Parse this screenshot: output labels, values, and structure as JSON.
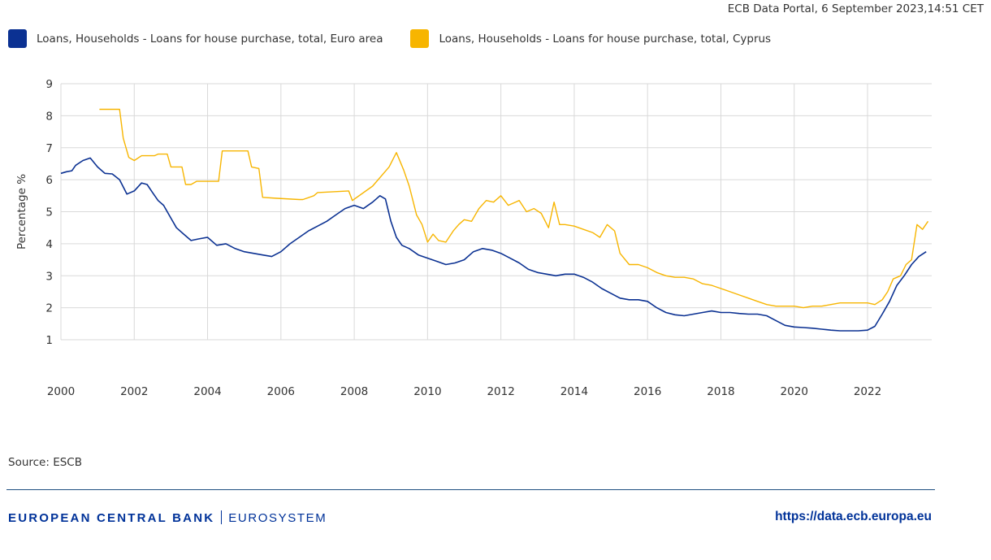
{
  "header": {
    "timestamp": "ECB Data Portal, 6 September 2023,14:51 CET"
  },
  "footer": {
    "source": "Source: ESCB",
    "bank_name": "EUROPEAN CENTRAL BANK",
    "system_name": "EUROSYSTEM",
    "url": "https://data.ecb.europa.eu"
  },
  "colors": {
    "euro_area": "#0b3192",
    "cyprus": "#f7b500",
    "grid": "#d9d9d9"
  },
  "chart_data": {
    "type": "line",
    "title": "",
    "xlabel": "",
    "ylabel": "Percentage %",
    "xlim": [
      2000,
      2023.75
    ],
    "ylim": [
      1,
      9
    ],
    "x_ticks": [
      "2000",
      "2002",
      "2004",
      "2006",
      "2008",
      "2010",
      "2012",
      "2014",
      "2016",
      "2018",
      "2020",
      "2022"
    ],
    "y_ticks": [
      "1",
      "2",
      "3",
      "4",
      "5",
      "6",
      "7",
      "8",
      "9"
    ],
    "grid": true,
    "legend_position": "top-left",
    "series": [
      {
        "name": "Loans, Households - Loans for house purchase, total, Euro area",
        "color": "#0b3192",
        "x": [
          2000.0,
          2000.15,
          2000.3,
          2000.4,
          2000.6,
          2000.8,
          2001.0,
          2001.2,
          2001.4,
          2001.6,
          2001.8,
          2002.0,
          2002.2,
          2002.35,
          2002.5,
          2002.65,
          2002.8,
          2003.0,
          2003.15,
          2003.35,
          2003.55,
          2003.75,
          2004.0,
          2004.25,
          2004.5,
          2004.75,
          2005.0,
          2005.25,
          2005.5,
          2005.75,
          2006.0,
          2006.25,
          2006.5,
          2006.75,
          2007.0,
          2007.25,
          2007.5,
          2007.75,
          2008.0,
          2008.25,
          2008.5,
          2008.7,
          2008.85,
          2009.0,
          2009.15,
          2009.3,
          2009.5,
          2009.75,
          2010.0,
          2010.25,
          2010.5,
          2010.75,
          2011.0,
          2011.25,
          2011.5,
          2011.75,
          2012.0,
          2012.25,
          2012.5,
          2012.75,
          2013.0,
          2013.25,
          2013.5,
          2013.75,
          2014.0,
          2014.25,
          2014.5,
          2014.75,
          2015.0,
          2015.25,
          2015.5,
          2015.75,
          2016.0,
          2016.25,
          2016.5,
          2016.75,
          2017.0,
          2017.25,
          2017.5,
          2017.75,
          2018.0,
          2018.25,
          2018.5,
          2018.75,
          2019.0,
          2019.25,
          2019.5,
          2019.75,
          2020.0,
          2020.25,
          2020.5,
          2020.75,
          2021.0,
          2021.25,
          2021.5,
          2021.75,
          2022.0,
          2022.2,
          2022.4,
          2022.6,
          2022.8,
          2023.0,
          2023.2,
          2023.4,
          2023.6
        ],
        "values": [
          6.2,
          6.25,
          6.28,
          6.45,
          6.6,
          6.68,
          6.4,
          6.2,
          6.18,
          6.0,
          5.55,
          5.65,
          5.9,
          5.85,
          5.6,
          5.35,
          5.2,
          4.8,
          4.5,
          4.3,
          4.1,
          4.15,
          4.2,
          3.95,
          4.0,
          3.85,
          3.75,
          3.7,
          3.65,
          3.6,
          3.75,
          4.0,
          4.2,
          4.4,
          4.55,
          4.7,
          4.9,
          5.1,
          5.2,
          5.1,
          5.3,
          5.5,
          5.4,
          4.7,
          4.2,
          3.95,
          3.85,
          3.65,
          3.55,
          3.45,
          3.35,
          3.4,
          3.5,
          3.75,
          3.85,
          3.8,
          3.7,
          3.55,
          3.4,
          3.2,
          3.1,
          3.05,
          3.0,
          3.05,
          3.05,
          2.95,
          2.8,
          2.6,
          2.45,
          2.3,
          2.25,
          2.25,
          2.2,
          2.0,
          1.85,
          1.78,
          1.75,
          1.8,
          1.85,
          1.9,
          1.85,
          1.85,
          1.82,
          1.8,
          1.8,
          1.75,
          1.6,
          1.45,
          1.4,
          1.38,
          1.36,
          1.33,
          1.3,
          1.28,
          1.28,
          1.28,
          1.3,
          1.42,
          1.8,
          2.2,
          2.7,
          3.0,
          3.35,
          3.6,
          3.75
        ]
      },
      {
        "name": "Loans, Households - Loans for house purchase, total, Cyprus",
        "color": "#f7b500",
        "x": [
          2001.05,
          2001.6,
          2001.7,
          2001.85,
          2002.0,
          2002.2,
          2002.55,
          2002.65,
          2002.9,
          2003.0,
          2003.3,
          2003.4,
          2003.55,
          2003.7,
          2004.3,
          2004.4,
          2005.1,
          2005.2,
          2005.4,
          2005.5,
          2005.9,
          2006.5,
          2006.6,
          2006.9,
          2007.0,
          2007.85,
          2007.95,
          2008.5,
          2008.95,
          2009.15,
          2009.35,
          2009.5,
          2009.7,
          2009.85,
          2010.0,
          2010.15,
          2010.3,
          2010.5,
          2010.7,
          2010.85,
          2011.0,
          2011.2,
          2011.4,
          2011.6,
          2011.8,
          2012.0,
          2012.2,
          2012.5,
          2012.7,
          2012.9,
          2013.1,
          2013.3,
          2013.45,
          2013.6,
          2013.75,
          2014.0,
          2014.25,
          2014.5,
          2014.7,
          2014.9,
          2015.1,
          2015.25,
          2015.5,
          2015.75,
          2016.0,
          2016.25,
          2016.5,
          2016.75,
          2017.0,
          2017.25,
          2017.5,
          2017.75,
          2018.0,
          2018.25,
          2018.5,
          2018.75,
          2019.0,
          2019.25,
          2019.5,
          2019.75,
          2020.0,
          2020.25,
          2020.5,
          2020.75,
          2021.0,
          2021.25,
          2021.5,
          2021.75,
          2022.0,
          2022.2,
          2022.4,
          2022.55,
          2022.7,
          2022.9,
          2023.05,
          2023.2,
          2023.35,
          2023.5,
          2023.65
        ],
        "values": [
          8.2,
          8.2,
          7.3,
          6.7,
          6.6,
          6.75,
          6.75,
          6.8,
          6.8,
          6.4,
          6.4,
          5.85,
          5.85,
          5.95,
          5.95,
          6.9,
          6.9,
          6.4,
          6.35,
          5.45,
          5.42,
          5.38,
          5.38,
          5.5,
          5.6,
          5.65,
          5.35,
          5.8,
          6.4,
          6.85,
          6.3,
          5.8,
          4.9,
          4.6,
          4.05,
          4.3,
          4.1,
          4.05,
          4.4,
          4.6,
          4.75,
          4.7,
          5.1,
          5.35,
          5.3,
          5.5,
          5.2,
          5.35,
          5.0,
          5.1,
          4.95,
          4.5,
          5.3,
          4.6,
          4.6,
          4.55,
          4.45,
          4.35,
          4.2,
          4.6,
          4.4,
          3.7,
          3.35,
          3.35,
          3.25,
          3.1,
          3.0,
          2.95,
          2.95,
          2.9,
          2.75,
          2.7,
          2.6,
          2.5,
          2.4,
          2.3,
          2.2,
          2.1,
          2.05,
          2.05,
          2.05,
          2.0,
          2.05,
          2.05,
          2.1,
          2.15,
          2.15,
          2.15,
          2.15,
          2.1,
          2.25,
          2.5,
          2.9,
          3.0,
          3.35,
          3.5,
          4.6,
          4.45,
          4.7
        ]
      }
    ]
  }
}
